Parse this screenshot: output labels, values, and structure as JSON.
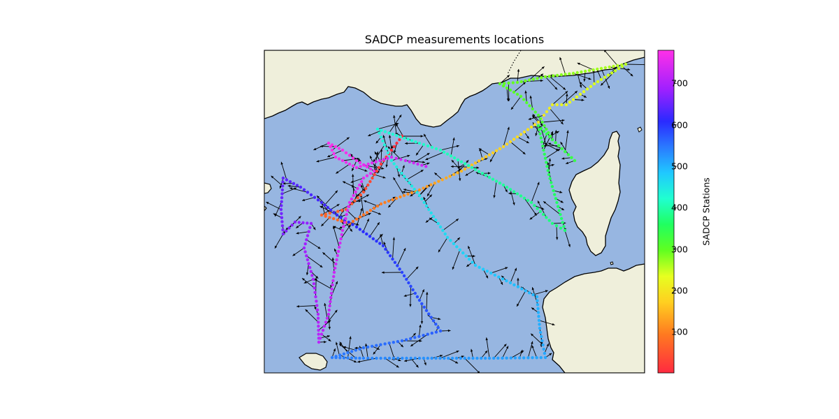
{
  "figure": {
    "title": "SADCP measurements locations"
  },
  "colorbar": {
    "label": "SADCP Stations",
    "ticks": [
      "100",
      "200",
      "300",
      "400",
      "500",
      "600",
      "700"
    ],
    "tick_values": [
      100,
      200,
      300,
      400,
      500,
      600,
      700
    ],
    "range": [
      1,
      780
    ],
    "colormap": "gist_rainbow_r"
  },
  "colors": {
    "sea": "#97b6e1",
    "land": "#efefdb",
    "coast": "#000000",
    "arrow": "#000000"
  }
}
